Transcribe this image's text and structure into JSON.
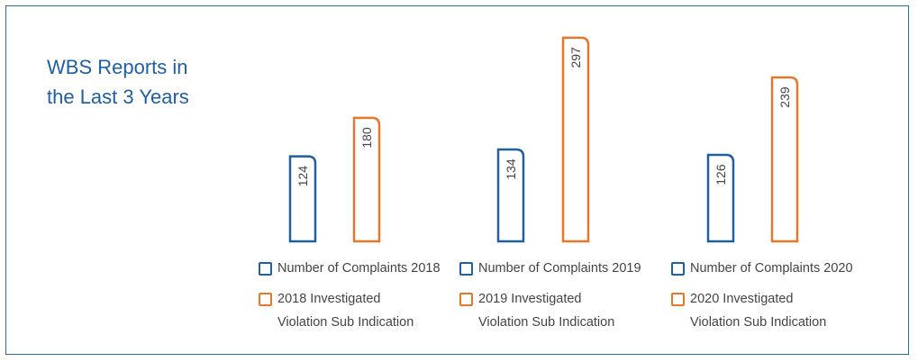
{
  "title_lines": [
    "WBS Reports in",
    "the Last 3 Years"
  ],
  "colors": {
    "complaints": "#1f5fa2",
    "investigated": "#e8772e",
    "border": "#2a6aa6",
    "text": "#444444"
  },
  "chart_data": {
    "type": "bar",
    "title": "WBS Reports in the Last 3 Years",
    "categories": [
      "2018",
      "2019",
      "2020"
    ],
    "series": [
      {
        "name": "Number of Complaints",
        "values": [
          124,
          134,
          126
        ]
      },
      {
        "name": "Investigated Violation Sub Indication",
        "values": [
          180,
          297,
          239
        ]
      }
    ],
    "ylim": [
      0,
      300
    ],
    "legend": [
      {
        "complaints": "Number of Complaints 2018",
        "investigated_line1": "2018 Investigated",
        "investigated_line2": "Violation Sub Indication"
      },
      {
        "complaints": "Number of Complaints 2019",
        "investigated_line1": "2019 Investigated",
        "investigated_line2": "Violation Sub Indication"
      },
      {
        "complaints": "Number of Complaints 2020",
        "investigated_line1": "2020 Investigated",
        "investigated_line2": "Violation Sub Indication"
      }
    ]
  }
}
